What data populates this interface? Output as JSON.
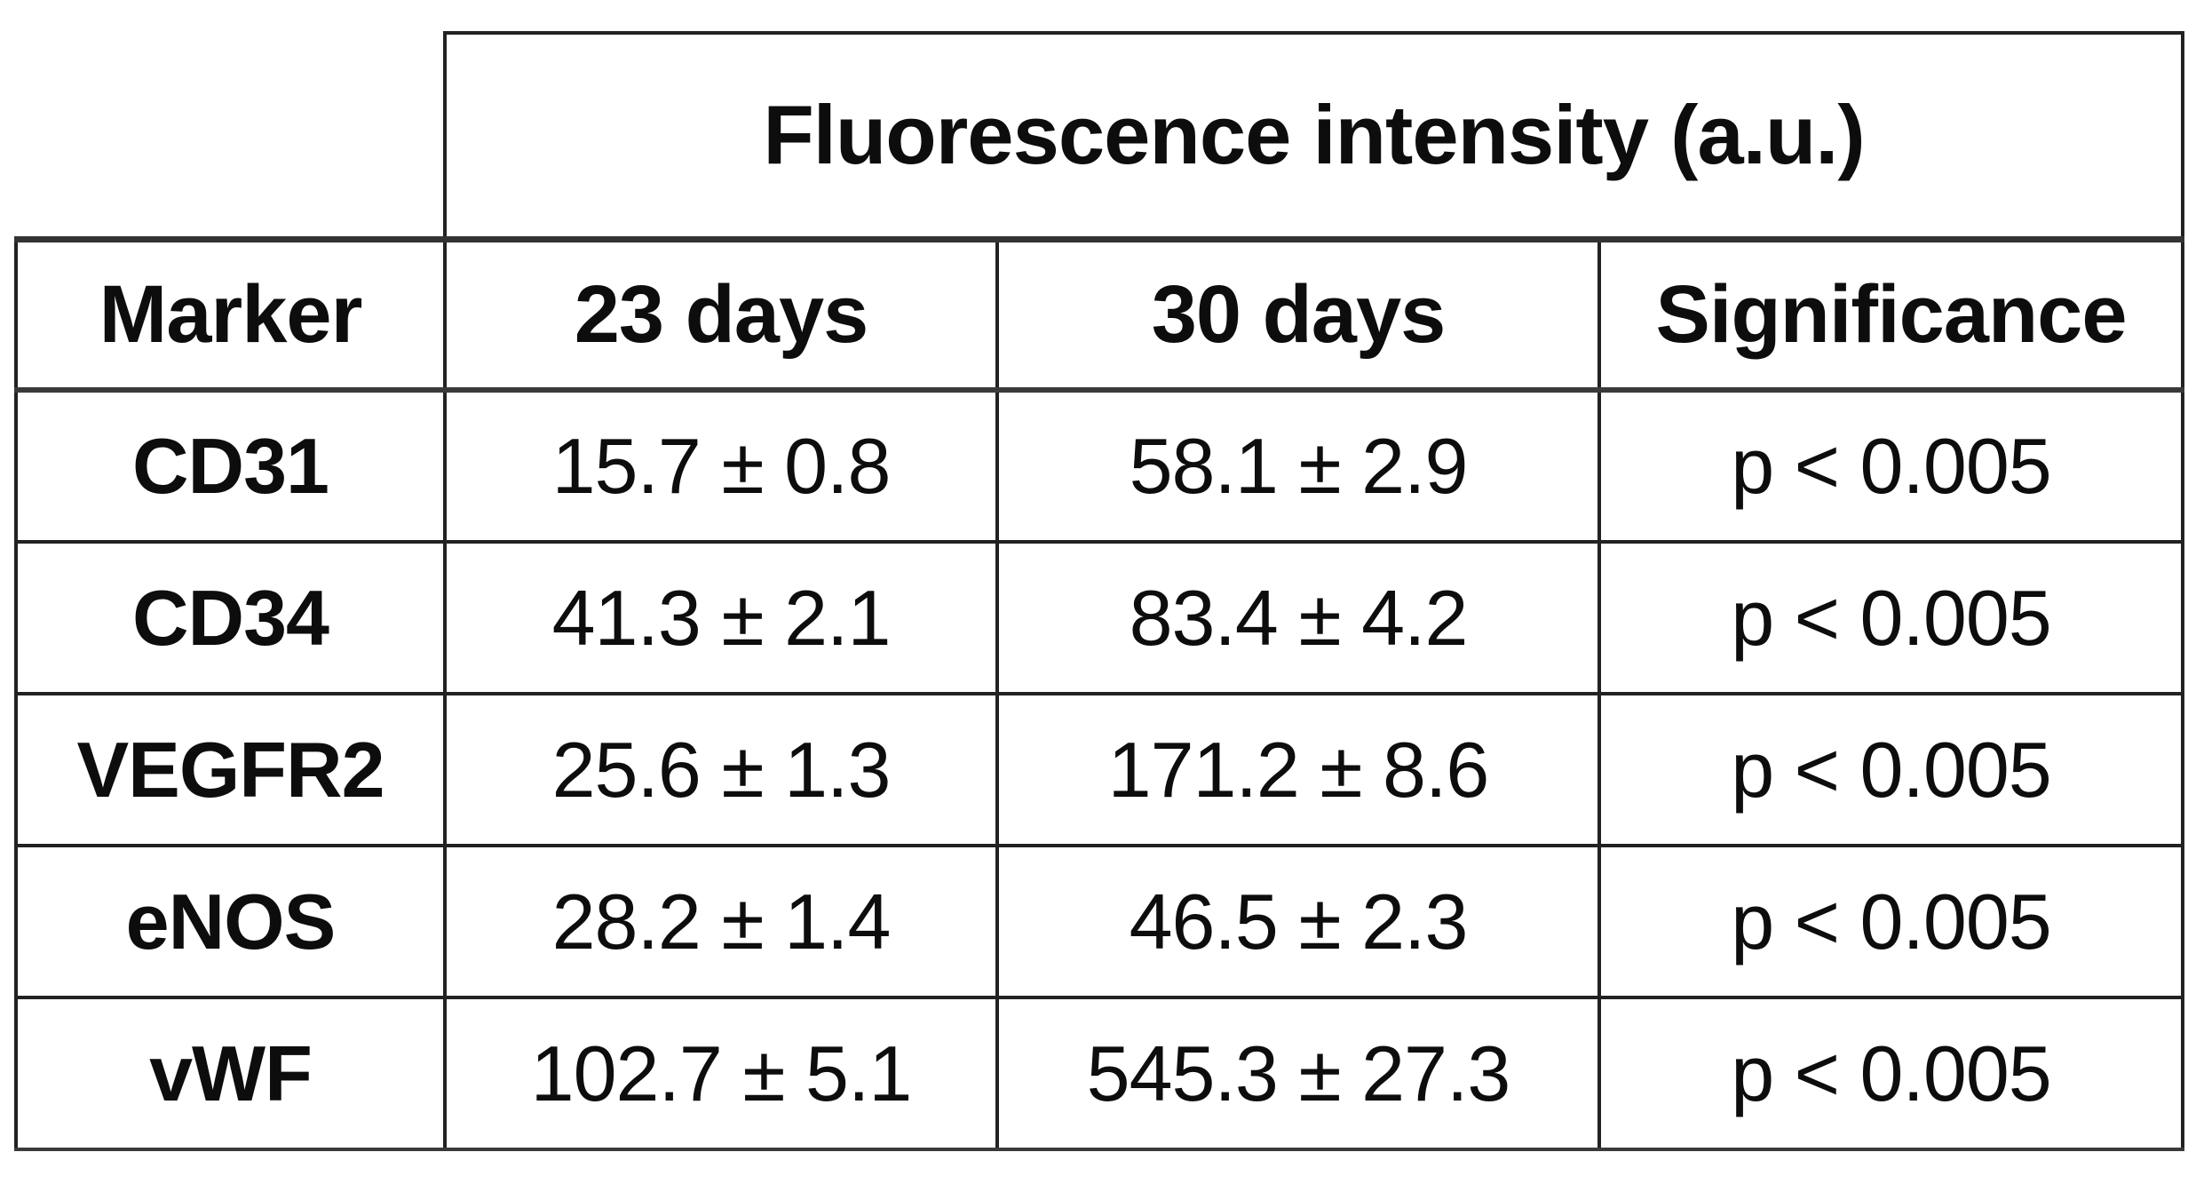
{
  "table": {
    "spanning_header": "Fluorescence intensity (a.u.)",
    "columns": [
      "Marker",
      "23 days",
      "30 days",
      "Significance"
    ],
    "rows": [
      {
        "marker": "CD31",
        "day23": "15.7 ± 0.8",
        "day30": "58.1 ± 2.9",
        "significance": "p < 0.005"
      },
      {
        "marker": "CD34",
        "day23": "41.3 ± 2.1",
        "day30": "83.4 ± 4.2",
        "significance": "p < 0.005"
      },
      {
        "marker": "VEGFR2",
        "day23": "25.6 ± 1.3",
        "day30": "171.2 ± 8.6",
        "significance": "p < 0.005"
      },
      {
        "marker": "eNOS",
        "day23": "28.2 ± 1.4",
        "day30": "46.5 ± 2.3",
        "significance": "p < 0.005"
      },
      {
        "marker": "vWF",
        "day23": "102.7 ± 5.1",
        "day30": "545.3 ± 27.3",
        "significance": "p < 0.005"
      }
    ]
  },
  "colors": {
    "background": "#ffffff",
    "border": "#222222",
    "text": "#0d0d0d"
  }
}
